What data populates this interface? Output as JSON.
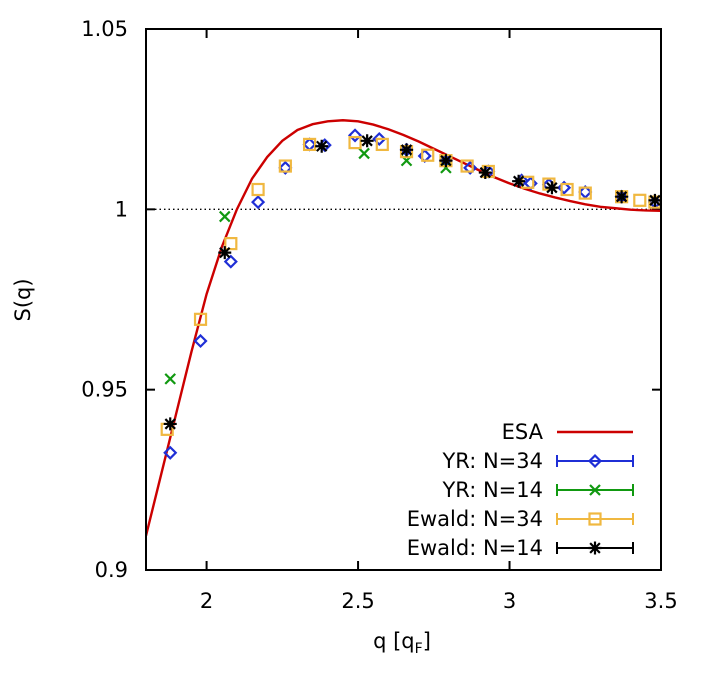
{
  "chart_data": {
    "type": "scatter",
    "title": "",
    "xlabel": "q [q",
    "xlabel_sub": "F",
    "xlabel_close": "]",
    "ylabel": "S(q)",
    "xlim": [
      1.8,
      3.5
    ],
    "ylim": [
      0.9,
      1.05
    ],
    "xticks": [
      2,
      2.5,
      3,
      3.5
    ],
    "xtick_labels": [
      "2",
      "2.5",
      "3",
      "3.5"
    ],
    "yticks": [
      0.9,
      0.95,
      1,
      1.05
    ],
    "ytick_labels": [
      "0.9",
      "0.95",
      "1",
      "1.05"
    ],
    "reference_line": {
      "y": 1,
      "style": "dotted"
    },
    "legend_position": "bottom-right",
    "series": [
      {
        "name": "ESA",
        "kind": "line",
        "color": "#cc0000",
        "x": [
          1.8,
          1.85,
          1.9,
          1.95,
          2.0,
          2.05,
          2.1,
          2.15,
          2.2,
          2.25,
          2.3,
          2.35,
          2.4,
          2.45,
          2.5,
          2.55,
          2.6,
          2.65,
          2.7,
          2.75,
          2.8,
          2.85,
          2.9,
          2.95,
          3.0,
          3.05,
          3.1,
          3.15,
          3.2,
          3.25,
          3.3,
          3.35,
          3.4,
          3.45,
          3.5
        ],
        "values": [
          0.9095,
          0.9265,
          0.9435,
          0.9605,
          0.9765,
          0.9895,
          1.0,
          1.0085,
          1.0145,
          1.019,
          1.022,
          1.0236,
          1.0244,
          1.0247,
          1.0244,
          1.0235,
          1.0222,
          1.0206,
          1.0188,
          1.0168,
          1.0148,
          1.0128,
          1.0108,
          1.0089,
          1.0072,
          1.0057,
          1.0044,
          1.0033,
          1.0023,
          1.0014,
          1.0007,
          1.0003,
          0.9999,
          0.9997,
          0.9996
        ]
      },
      {
        "name": "YR: N=34",
        "kind": "errorbars",
        "marker": "diamond",
        "color": "#1f2fd6",
        "x": [
          1.88,
          1.98,
          2.08,
          2.17,
          2.26,
          2.34,
          2.39,
          2.49,
          2.57,
          2.66,
          2.72,
          2.79,
          2.87,
          2.93,
          3.04,
          3.07,
          3.13,
          3.18,
          3.25,
          3.37,
          3.48
        ],
        "values": [
          0.9325,
          0.9635,
          0.9855,
          1.002,
          1.0115,
          1.018,
          1.0178,
          1.0205,
          1.0195,
          1.0165,
          1.0148,
          1.0135,
          1.0115,
          1.0105,
          1.008,
          1.0072,
          1.0068,
          1.006,
          1.0048,
          1.0035,
          1.002
        ]
      },
      {
        "name": "YR: N=14",
        "kind": "errorbars",
        "marker": "x",
        "color": "#119911",
        "x": [
          1.88,
          2.06,
          2.52,
          2.66,
          2.79
        ],
        "values": [
          0.953,
          0.998,
          1.0155,
          1.0135,
          1.0115
        ]
      },
      {
        "name": "Ewald: N=34",
        "kind": "errorbars",
        "marker": "square",
        "color": "#f0b840",
        "x": [
          1.87,
          1.98,
          2.08,
          2.17,
          2.26,
          2.34,
          2.49,
          2.58,
          2.66,
          2.73,
          2.79,
          2.86,
          2.93,
          3.06,
          3.13,
          3.19,
          3.25,
          3.37,
          3.43,
          3.48
        ],
        "values": [
          0.939,
          0.9695,
          0.9905,
          1.0055,
          1.012,
          1.018,
          1.0185,
          1.018,
          1.016,
          1.015,
          1.0135,
          1.012,
          1.0105,
          1.0075,
          1.007,
          1.0055,
          1.0045,
          1.0035,
          1.0025,
          1.002
        ]
      },
      {
        "name": "Ewald: N=14",
        "kind": "errorbars",
        "marker": "asterisk",
        "color": "#000000",
        "x": [
          1.88,
          2.06,
          2.38,
          2.53,
          2.66,
          2.79,
          2.92,
          3.03,
          3.14,
          3.37,
          3.48
        ],
        "values": [
          0.9405,
          0.988,
          1.0175,
          1.019,
          1.0165,
          1.0135,
          1.0102,
          1.0078,
          1.006,
          1.0035,
          1.0025
        ]
      }
    ]
  }
}
